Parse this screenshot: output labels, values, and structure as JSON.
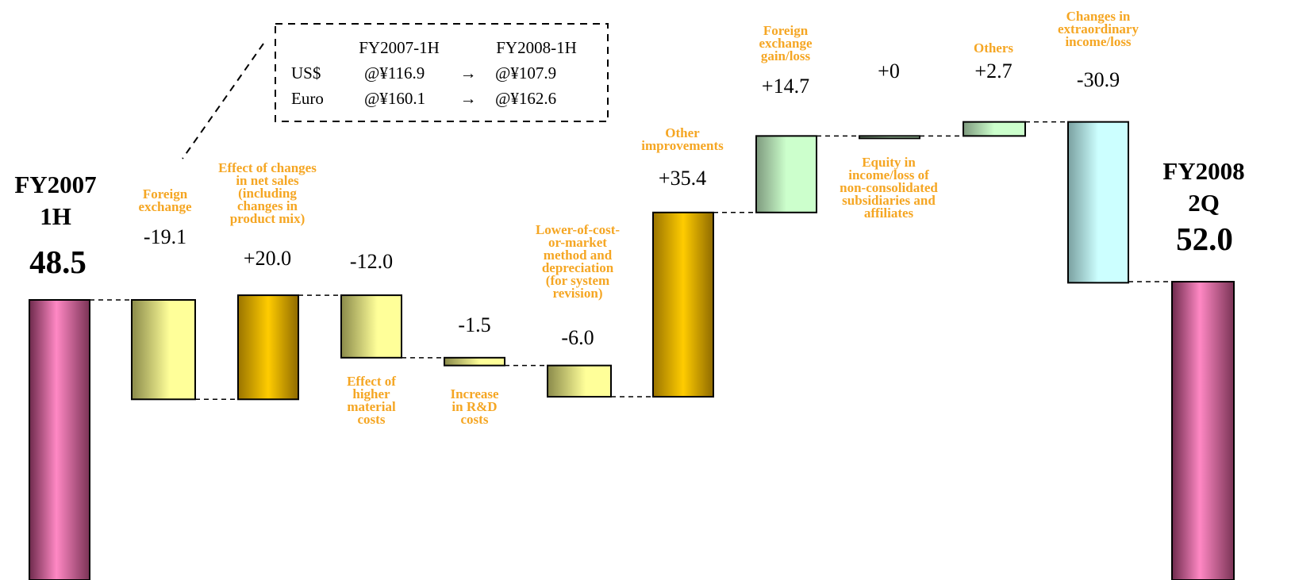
{
  "chart_data": {
    "type": "waterfall",
    "start": {
      "label_lines": [
        "FY2007",
        "1H"
      ],
      "value": 48.5,
      "value_label": "48.5"
    },
    "end": {
      "label_lines": [
        "FY2008",
        "2Q"
      ],
      "value": 52.0,
      "value_label": "52.0"
    },
    "steps": [
      {
        "label_lines": [
          "Foreign",
          "exchange"
        ],
        "value": -19.1,
        "value_label": "-19.1"
      },
      {
        "label_lines": [
          "Effect of changes",
          "in net sales",
          "(including",
          "changes in",
          "product mix)"
        ],
        "value": 20.0,
        "value_label": "+20.0"
      },
      {
        "label_lines": [
          "Effect of",
          "higher",
          "material",
          "costs"
        ],
        "value": -12.0,
        "value_label": "-12.0"
      },
      {
        "label_lines": [
          "Increase",
          "in R&D",
          "costs"
        ],
        "value": -1.5,
        "value_label": "-1.5"
      },
      {
        "label_lines": [
          "Lower-of-cost-",
          "or-market",
          "method and",
          "depreciation",
          "(for system",
          "revision)"
        ],
        "value": -6.0,
        "value_label": "-6.0"
      },
      {
        "label_lines": [
          "Other",
          "improvements"
        ],
        "value": 35.4,
        "value_label": "+35.4"
      },
      {
        "label_lines": [
          "Foreign",
          "exchange",
          "gain/loss"
        ],
        "value": 14.7,
        "value_label": "+14.7"
      },
      {
        "label_lines": [
          "Equity in",
          "income/loss of",
          "non-consolidated",
          "subsidiaries and",
          "affiliates"
        ],
        "value": 0,
        "value_label": "+0"
      },
      {
        "label_lines": [
          "Others"
        ],
        "value": 2.7,
        "value_label": "+2.7"
      },
      {
        "label_lines": [
          "Changes in",
          "extraordinary",
          "income/loss"
        ],
        "value": -30.9,
        "value_label": "-30.9"
      }
    ],
    "colors": {
      "label_orange": "#f5a623",
      "endpoint": "#ff88c4",
      "fx": "#ffff99",
      "sales": "#ffcc00",
      "other_improvements": "#ffcc00",
      "fx_gain": "#ccffcc",
      "others": "#ccffcc",
      "extraordinary": "#ccffff"
    }
  },
  "fx_box": {
    "headers": [
      "FY2007-1H",
      "FY2008-1H"
    ],
    "rows": [
      {
        "currency": "US$",
        "from": "@¥116.9",
        "arrow": "→",
        "to": "@¥107.9"
      },
      {
        "currency": "Euro",
        "from": "@¥160.1",
        "arrow": "→",
        "to": "@¥162.6"
      }
    ]
  }
}
